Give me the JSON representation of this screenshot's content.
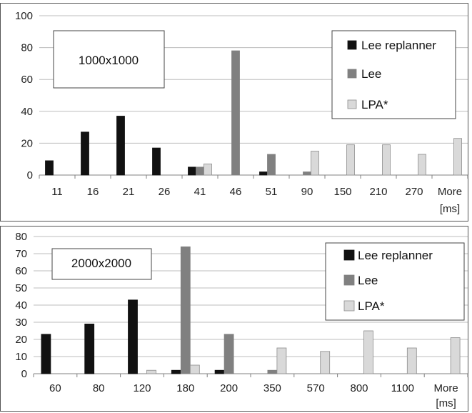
{
  "chart_data": [
    {
      "type": "bar",
      "annotation": "1000x1000",
      "unit_label": "[ms]",
      "categories": [
        "11",
        "16",
        "21",
        "26",
        "41",
        "46",
        "51",
        "90",
        "150",
        "210",
        "270",
        "More"
      ],
      "ylim": [
        0,
        100
      ],
      "yticks": [
        "0",
        "20",
        "40",
        "60",
        "80",
        "100"
      ],
      "grid": true,
      "legend_position": "top-right",
      "series": [
        {
          "name": "Lee replanner",
          "color": "#111111",
          "values": [
            9,
            27,
            37,
            17,
            5,
            0,
            2,
            0,
            0,
            0,
            0,
            0
          ]
        },
        {
          "name": "Lee",
          "color": "#808080",
          "values": [
            0,
            0,
            0,
            0,
            5,
            78,
            13,
            2,
            0,
            0,
            0,
            0
          ]
        },
        {
          "name": "LPA*",
          "color": "#d9d9d9",
          "values": [
            0,
            0,
            0,
            0,
            7,
            0,
            0,
            15,
            19,
            19,
            13,
            23
          ]
        }
      ]
    },
    {
      "type": "bar",
      "annotation": "2000x2000",
      "unit_label": "[ms]",
      "categories": [
        "60",
        "80",
        "120",
        "180",
        "200",
        "350",
        "570",
        "800",
        "1100",
        "More"
      ],
      "ylim": [
        0,
        80
      ],
      "yticks": [
        "0",
        "10",
        "20",
        "30",
        "40",
        "50",
        "60",
        "70",
        "80"
      ],
      "grid": true,
      "legend_position": "top-right",
      "series": [
        {
          "name": "Lee replanner",
          "color": "#111111",
          "values": [
            23,
            29,
            43,
            2,
            2,
            0,
            0,
            0,
            0,
            0
          ]
        },
        {
          "name": "Lee",
          "color": "#808080",
          "values": [
            0,
            0,
            0,
            74,
            23,
            2,
            0,
            0,
            0,
            0
          ]
        },
        {
          "name": "LPA*",
          "color": "#d9d9d9",
          "values": [
            0,
            0,
            2,
            5,
            0,
            15,
            13,
            25,
            15,
            21
          ]
        }
      ]
    }
  ]
}
